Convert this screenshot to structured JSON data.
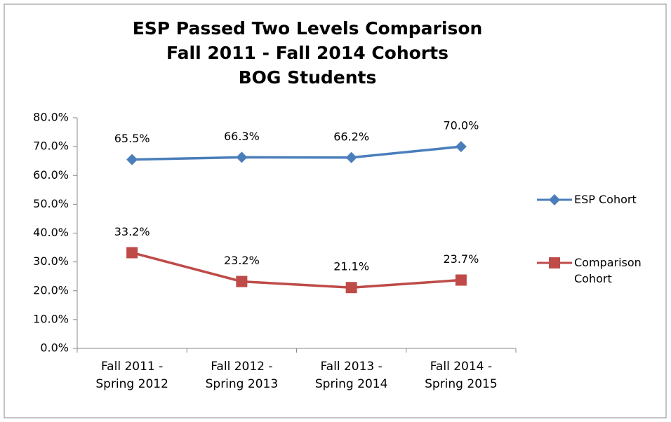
{
  "chart_data": {
    "type": "line",
    "title": [
      "ESP Passed Two Levels Comparison",
      "Fall 2011 - Fall 2014 Cohorts",
      "BOG Students"
    ],
    "categories": [
      "Fall 2011 - Spring 2012",
      "Fall 2012 - Spring 2013",
      "Fall 2013 - Spring 2014",
      "Fall 2014 - Spring 2015"
    ],
    "series": [
      {
        "name": "ESP Cohort",
        "color": "#4a7ebb",
        "marker": "diamond",
        "values": [
          65.5,
          66.3,
          66.2,
          70.0
        ],
        "value_labels": [
          "65.5%",
          "66.3%",
          "66.2%",
          "70.0%"
        ]
      },
      {
        "name": "Comparison Cohort",
        "color": "#be4b48",
        "marker": "square",
        "values": [
          33.2,
          23.2,
          21.1,
          23.7
        ],
        "value_labels": [
          "33.2%",
          "23.2%",
          "21.1%",
          "23.7%"
        ]
      }
    ],
    "ylim": [
      0,
      80
    ],
    "yticks": [
      {
        "value": 0,
        "label": "0.0%"
      },
      {
        "value": 10,
        "label": "10.0%"
      },
      {
        "value": 20,
        "label": "20.0%"
      },
      {
        "value": 30,
        "label": "30.0%"
      },
      {
        "value": 40,
        "label": "40.0%"
      },
      {
        "value": 50,
        "label": "50.0%"
      },
      {
        "value": 60,
        "label": "60.0%"
      },
      {
        "value": 70,
        "label": "70.0%"
      },
      {
        "value": 80,
        "label": "80.0%"
      }
    ],
    "grid": false,
    "legend": "right"
  }
}
